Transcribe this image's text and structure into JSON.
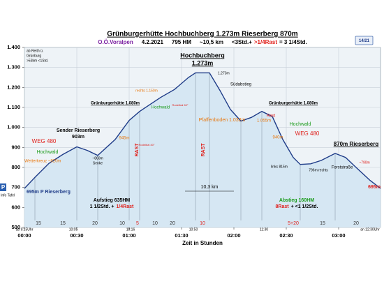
{
  "chart_data": {
    "type": "area",
    "title": "Grünburgerhütte Hochbuchberg 1.273m  Rieserberg  870m",
    "header_parts": [
      {
        "text": "O.Ö.Voralpen",
        "color": "#7a1fa0"
      },
      {
        "text": "4.2.2021",
        "color": "#000000"
      },
      {
        "text": "795 HM",
        "color": "#000000"
      },
      {
        "text": "~10,5 km",
        "color": "#000000"
      },
      {
        "text": "<3Std.+",
        "color": "#000000"
      },
      {
        "text": ">1/4Rast",
        "color": "#e0201b"
      },
      {
        "text": "= 3 1/4Std.",
        "color": "#000000"
      }
    ],
    "page_number": "14/21",
    "xlabel": "Zeit in Stunden",
    "x": [
      0,
      6,
      14,
      22,
      30,
      36,
      42,
      52,
      60,
      66,
      72,
      78,
      86,
      94,
      98,
      106,
      112,
      118,
      124,
      130,
      136,
      142,
      148,
      154,
      158,
      164,
      170,
      178,
      184,
      190,
      198,
      204
    ],
    "values": [
      695,
      750,
      820,
      865,
      903,
      885,
      860,
      940,
      1035,
      1080,
      1115,
      1150,
      1190,
      1250,
      1273,
      1273,
      1185,
      1090,
      1032,
      1050,
      1080,
      1055,
      940,
      850,
      815,
      818,
      835,
      870,
      850,
      800,
      735,
      695
    ],
    "color": "#1f3c88",
    "fill": "#d6e7f3",
    "xlim": [
      0,
      204
    ],
    "xticks": [
      {
        "value": 0,
        "label": "00:00"
      },
      {
        "value": 30,
        "label": "00:30"
      },
      {
        "value": 60,
        "label": "01:00"
      },
      {
        "value": 90,
        "label": "01:30"
      },
      {
        "value": 120,
        "label": "02:00"
      },
      {
        "value": 150,
        "label": "02:30"
      },
      {
        "value": 180,
        "label": "03:00"
      }
    ],
    "ylim": [
      500,
      1400
    ],
    "yticks": [
      500,
      600,
      700,
      800,
      900,
      {
        "value": 1000,
        "label": "1.000"
      },
      {
        "value": 1100,
        "label": "1.100"
      },
      {
        "value": 1200,
        "label": "1.200"
      },
      {
        "value": 1300,
        "label": "1.300"
      },
      {
        "value": 1400,
        "label": "1.400"
      }
    ],
    "grid": true,
    "segment_labels": [
      {
        "text": "15",
        "color": "#333333"
      },
      {
        "text": "15",
        "color": "#333333"
      },
      {
        "text": "20",
        "color": "#333333"
      },
      {
        "text": "10",
        "color": "#333333"
      },
      {
        "text": "5",
        "color": "#e0201b"
      },
      {
        "text": "10",
        "color": "#333333"
      },
      {
        "text": "20",
        "color": "#333333"
      },
      {
        "text": "10",
        "color": "#e0201b"
      },
      {
        "text": "5+20",
        "color": "#e0201b"
      },
      {
        "text": "15",
        "color": "#333333"
      },
      {
        "text": "20",
        "color": "#333333"
      }
    ],
    "clock_labels": [
      "ab 9:15Uhr",
      "10:05",
      "10:16",
      "10:50",
      "11:30",
      "an 12:30Uhr"
    ],
    "annotations": [
      {
        "text": "ab Reith ü.",
        "color": "#000000"
      },
      {
        "text": "Grünburg",
        "color": "#000000"
      },
      {
        "text": ">53km <1Std.",
        "color": "#000000"
      },
      {
        "text": "Hochbuchberg",
        "color": "#000000"
      },
      {
        "text": "1.273m",
        "color": "#000000"
      },
      {
        "text": "1.273m",
        "color": "#000000"
      },
      {
        "text": "Südabstieg",
        "color": "#000000"
      },
      {
        "text": "Grünburgerhütte 1.080m",
        "color": "#000000"
      },
      {
        "text": "Grünburgerhütte 1.080m",
        "color": "#000000"
      },
      {
        "text": "rechts 1.150m",
        "color": "#e87810"
      },
      {
        "text": "Rodelbal 60°",
        "color": "#e0201b"
      },
      {
        "text": "Hochwald",
        "color": "#1a9a1a"
      },
      {
        "text": "Sender Rieserberg",
        "color": "#000000"
      },
      {
        "text": "903m",
        "color": "#000000"
      },
      {
        "text": "WEG 480",
        "color": "#e0201b"
      },
      {
        "text": "Hochwald",
        "color": "#1a9a1a"
      },
      {
        "text": "Wetterkreuz ~820m",
        "color": "#e87810"
      },
      {
        "text": "~860m",
        "color": "#000000"
      },
      {
        "text": "Senke",
        "color": "#000000"
      },
      {
        "text": "945m",
        "color": "#e87810"
      },
      {
        "text": "Rodelbal 40°",
        "color": "#e0201b"
      },
      {
        "text": "Pfaffenboden 1.032m",
        "color": "#e87810"
      },
      {
        "text": "Rast",
        "color": "#e0201b"
      },
      {
        "text": "1.055m",
        "color": "#e87810"
      },
      {
        "text": "Hochwald",
        "color": "#1a9a1a"
      },
      {
        "text": "WEG 480",
        "color": "#e0201b"
      },
      {
        "text": "940m",
        "color": "#e87810"
      },
      {
        "text": "870m Rieserberg",
        "color": "#000000"
      },
      {
        "text": "links 815m",
        "color": "#000000"
      },
      {
        "text": "796m rechts",
        "color": "#000000"
      },
      {
        "text": "Forststraße",
        "color": "#000000"
      },
      {
        "text": "~790m",
        "color": "#e0201b"
      },
      {
        "text": "695m P Rieserberg",
        "color": "#1f3c88"
      },
      {
        "text": "695m",
        "color": "#e0201b"
      },
      {
        "text": "Info Tafel",
        "color": "#000000"
      },
      {
        "text": "10,3 km",
        "color": "#000000"
      },
      {
        "text": "Aufstieg 635HM",
        "color": "#000000"
      },
      {
        "parts": [
          {
            "text": "1 1/2Std. +",
            "color": "#000000"
          },
          {
            "text": "1/4Rast",
            "color": "#e0201b"
          }
        ]
      },
      {
        "text": "Abstieg 160HM",
        "color": "#1a9a1a"
      },
      {
        "parts": [
          {
            "text": "8Rast",
            "color": "#e0201b"
          },
          {
            "text": "+ <1 1/2Std.",
            "color": "#000000"
          }
        ]
      },
      {
        "text": "RAST",
        "color": "#e0201b"
      },
      {
        "text": "RAST",
        "color": "#e0201b"
      },
      {
        "text": "P",
        "color": "#ffffff"
      }
    ]
  }
}
